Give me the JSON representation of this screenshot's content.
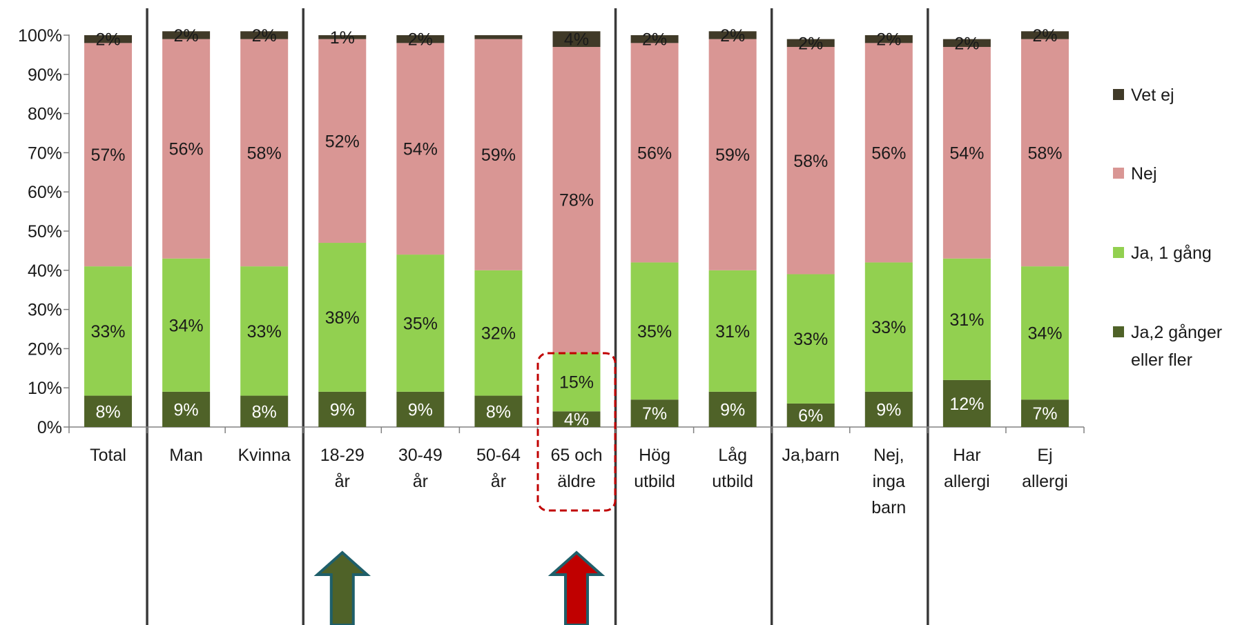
{
  "chart_data": {
    "type": "bar",
    "stacked": true,
    "categories": [
      "Total",
      "Man",
      "Kvinna",
      "18-29 år",
      "30-49 år",
      "50-64 år",
      "65 och äldre",
      "Hög utbild",
      "Låg utbild",
      "Ja,barn",
      "Nej, inga barn",
      "Har allergi",
      "Ej allergi"
    ],
    "category_lines": [
      [
        "Total"
      ],
      [
        "Man"
      ],
      [
        "Kvinna"
      ],
      [
        "18-29",
        "år"
      ],
      [
        "30-49",
        "år"
      ],
      [
        "50-64",
        "år"
      ],
      [
        "65 och",
        "äldre"
      ],
      [
        "Hög",
        "utbild"
      ],
      [
        "Låg",
        "utbild"
      ],
      [
        "Ja,barn"
      ],
      [
        "Nej,",
        "inga",
        "barn"
      ],
      [
        "Har",
        "allergi"
      ],
      [
        "Ej",
        "allergi"
      ]
    ],
    "ylim": [
      0,
      100
    ],
    "yticks": [
      "0%",
      "10%",
      "20%",
      "30%",
      "40%",
      "50%",
      "60%",
      "70%",
      "80%",
      "90%",
      "100%"
    ],
    "series": [
      {
        "name": "Ja,2 gånger eller fler",
        "color": "#4f6228",
        "values": [
          8,
          9,
          8,
          9,
          9,
          8,
          4,
          7,
          9,
          6,
          9,
          12,
          7
        ],
        "labels": [
          "8%",
          "9%",
          "8%",
          "9%",
          "9%",
          "8%",
          "4%",
          "7%",
          "9%",
          "6%",
          "9%",
          "12%",
          "7%"
        ]
      },
      {
        "name": "Ja, 1 gång",
        "color": "#92d050",
        "values": [
          33,
          34,
          33,
          38,
          35,
          32,
          15,
          35,
          31,
          33,
          33,
          31,
          34
        ],
        "labels": [
          "33%",
          "34%",
          "33%",
          "38%",
          "35%",
          "32%",
          "15%",
          "35%",
          "31%",
          "33%",
          "33%",
          "31%",
          "34%"
        ]
      },
      {
        "name": "Nej",
        "color": "#d99694",
        "values": [
          57,
          56,
          58,
          52,
          54,
          59,
          78,
          56,
          59,
          58,
          56,
          54,
          58
        ],
        "labels": [
          "57%",
          "56%",
          "58%",
          "52%",
          "54%",
          "59%",
          "78%",
          "56%",
          "59%",
          "58%",
          "56%",
          "54%",
          "58%"
        ]
      },
      {
        "name": "Vet ej",
        "color": "#403a28",
        "values": [
          2,
          2,
          2,
          1,
          2,
          1,
          4,
          2,
          2,
          2,
          2,
          2,
          2
        ],
        "labels": [
          "2%",
          "2%",
          "2%",
          "1%",
          "2%",
          "",
          "4%",
          "2%",
          "2%",
          "2%",
          "2%",
          "2%",
          "2%"
        ]
      }
    ],
    "legend": {
      "placement": "right",
      "entries": [
        {
          "lines": [
            "Vet ej"
          ],
          "color": "#403a28"
        },
        {
          "lines": [
            "Nej"
          ],
          "color": "#d99694"
        },
        {
          "lines": [
            "Ja, 1 gång"
          ],
          "color": "#92d050"
        },
        {
          "lines": [
            "Ja,2 gånger",
            "eller fler"
          ],
          "color": "#4f6228"
        }
      ]
    },
    "group_separators_after_index": [
      0,
      2,
      6,
      8,
      10
    ],
    "highlight_category": "65 och äldre",
    "highlight_color": "#c00000",
    "arrows": [
      {
        "category": "18-29 år",
        "color": "#4f6228",
        "outline": "#1f5f6a"
      },
      {
        "category": "65 och äldre",
        "color": "#c00000",
        "outline": "#1f5f6a"
      }
    ],
    "grid": false
  }
}
